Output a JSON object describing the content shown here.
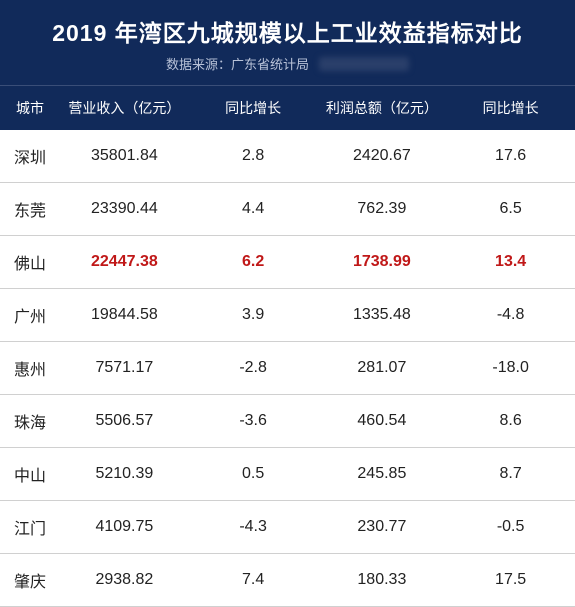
{
  "header": {
    "title": "2019 年湾区九城规模以上工业效益指标对比",
    "source_label": "数据来源：",
    "source_value": "广东省统计局"
  },
  "table": {
    "columns": [
      "城市",
      "营业收入（亿元）",
      "同比增长",
      "利润总额（亿元）",
      "同比增长"
    ],
    "rows": [
      {
        "city": "深圳",
        "revenue": "35801.84",
        "rev_growth": "2.8",
        "profit": "2420.67",
        "profit_growth": "17.6",
        "highlight": false
      },
      {
        "city": "东莞",
        "revenue": "23390.44",
        "rev_growth": "4.4",
        "profit": "762.39",
        "profit_growth": "6.5",
        "highlight": false
      },
      {
        "city": "佛山",
        "revenue": "22447.38",
        "rev_growth": "6.2",
        "profit": "1738.99",
        "profit_growth": "13.4",
        "highlight": true
      },
      {
        "city": "广州",
        "revenue": "19844.58",
        "rev_growth": "3.9",
        "profit": "1335.48",
        "profit_growth": "-4.8",
        "highlight": false
      },
      {
        "city": "惠州",
        "revenue": "7571.17",
        "rev_growth": "-2.8",
        "profit": "281.07",
        "profit_growth": "-18.0",
        "highlight": false
      },
      {
        "city": "珠海",
        "revenue": "5506.57",
        "rev_growth": "-3.6",
        "profit": "460.54",
        "profit_growth": "8.6",
        "highlight": false
      },
      {
        "city": "中山",
        "revenue": "5210.39",
        "rev_growth": "0.5",
        "profit": "245.85",
        "profit_growth": "8.7",
        "highlight": false
      },
      {
        "city": "江门",
        "revenue": "4109.75",
        "rev_growth": "-4.3",
        "profit": "230.77",
        "profit_growth": "-0.5",
        "highlight": false
      },
      {
        "city": "肇庆",
        "revenue": "2938.82",
        "rev_growth": "7.4",
        "profit": "180.33",
        "profit_growth": "17.5",
        "highlight": false
      }
    ]
  },
  "styling": {
    "header_bg": "#112a5a",
    "header_text": "#ffffff",
    "subtitle_text": "#b8c2d8",
    "highlight_color": "#c01818",
    "row_border": "#d0d0d0",
    "title_fontsize": 23,
    "subtitle_fontsize": 13,
    "th_fontsize": 14,
    "td_fontsize": 16
  }
}
